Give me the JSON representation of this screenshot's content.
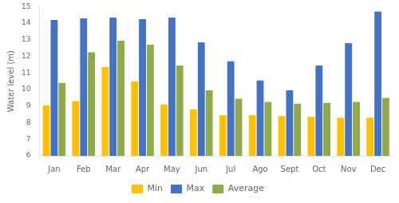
{
  "chart_data": {
    "type": "bar",
    "categories": [
      "Jan",
      "Feb",
      "Mar",
      "Apr",
      "May",
      "Jun",
      "Jul",
      "Ago",
      "Sept",
      "Oct",
      "Nov",
      "Dec"
    ],
    "series": [
      {
        "name": "Min",
        "color": "#FFC000",
        "values": [
          9.05,
          9.3,
          11.35,
          10.5,
          9.1,
          8.8,
          8.45,
          8.45,
          8.4,
          8.35,
          8.3,
          8.3
        ]
      },
      {
        "name": "Max",
        "color": "#4472C4",
        "values": [
          14.2,
          14.3,
          14.35,
          14.25,
          14.35,
          12.85,
          11.7,
          10.55,
          9.95,
          11.45,
          12.8,
          14.7
        ]
      },
      {
        "name": "Average",
        "color": "#8EAA4B",
        "values": [
          10.4,
          12.25,
          12.95,
          12.7,
          11.45,
          9.95,
          9.45,
          9.25,
          9.15,
          9.2,
          9.25,
          9.5
        ]
      }
    ],
    "ylabel": "Water level (m)",
    "ylim": [
      6,
      15
    ],
    "yticks": [
      6,
      7,
      8,
      9,
      10,
      11,
      12,
      13,
      14,
      15
    ],
    "grid": false,
    "legend": "bottom"
  }
}
